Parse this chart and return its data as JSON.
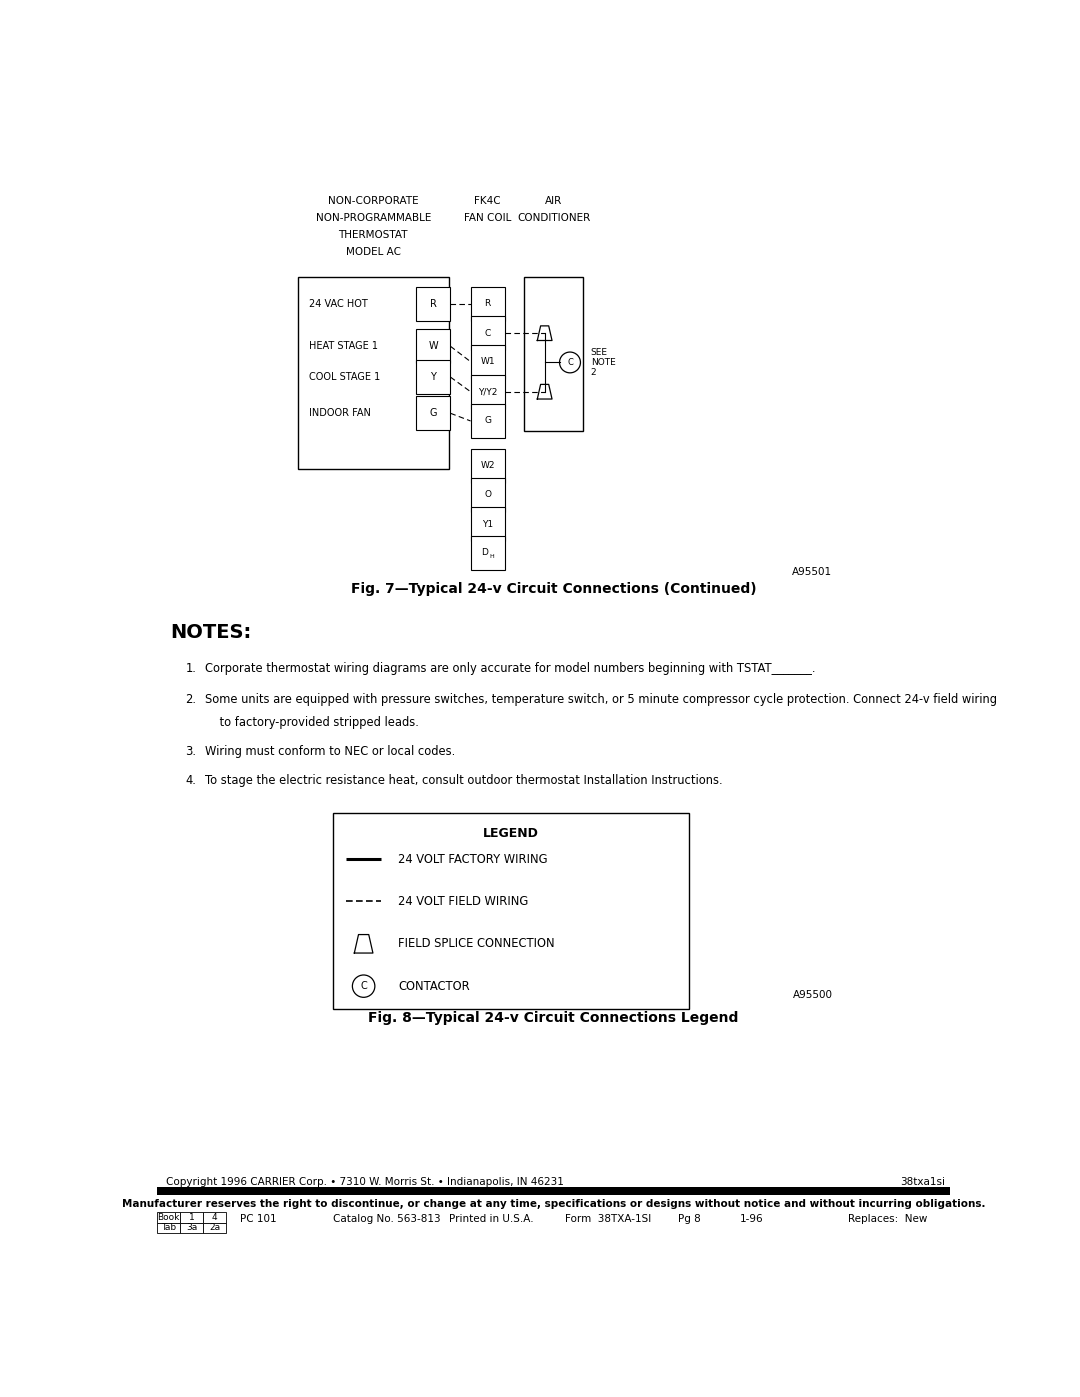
{
  "bg_color": "#ffffff",
  "page_width": 10.8,
  "page_height": 13.97,
  "fig_caption1": "Fig. 7—Typical 24-v Circuit Connections (Continued)",
  "fig_caption2": "Fig. 8—Typical 24-v Circuit Connections Legend",
  "ref_num1": "A95501",
  "ref_num2": "A95500",
  "thermostat_title_lines": [
    "NON-CORPORATE",
    "NON-PROGRAMMABLE",
    "THERMOSTAT",
    "MODEL AC"
  ],
  "fancoil_title_lines": [
    "FK4C",
    "FAN COIL"
  ],
  "aircond_title_lines": [
    "AIR",
    "CONDITIONER"
  ],
  "therm_labels": [
    "24 VAC HOT",
    "HEAT STAGE 1",
    "COOL STAGE 1",
    "INDOOR FAN"
  ],
  "therm_terms": [
    "R",
    "W",
    "Y",
    "G"
  ],
  "fc_terms": [
    "R",
    "C",
    "W1",
    "Y/Y2",
    "G",
    "W2",
    "O",
    "Y1",
    "DH"
  ],
  "notes_title": "NOTES:",
  "note1": "Corporate thermostat wiring diagrams are only accurate for model numbers beginning with TSTAT_______.",
  "note2a": "Some units are equipped with pressure switches, temperature switch, or 5 minute compressor cycle protection. Connect 24-v field wiring",
  "note2b": "    to factory-provided stripped leads.",
  "note3": "Wiring must conform to NEC or local codes.",
  "note4": "To stage the electric resistance heat, consult outdoor thermostat Installation Instructions.",
  "legend_title": "LEGEND",
  "leg_item1": "24 VOLT FACTORY WIRING",
  "leg_item2": "24 VOLT FIELD WIRING",
  "leg_item3": "FIELD SPLICE CONNECTION",
  "leg_item4": "CONTACTOR",
  "copyright": "Copyright 1996 CARRIER Corp. • 7310 W. Morris St. • Indianapolis, IN 46231",
  "form_ref": "38txa1si",
  "disclaimer": "Manufacturer reserves the right to discontinue, or change at any time, specifications or designs without notice and without incurring obligations.",
  "footer_details": [
    "PC 101",
    "Catalog No. 563-813",
    "Printed in U.S.A.",
    "Form  38TXA-1SI",
    "Pg 8",
    "1-96",
    "Replaces:  New"
  ],
  "footer_detail_x": [
    1.35,
    2.55,
    4.05,
    5.55,
    7.0,
    7.8,
    9.2
  ],
  "book_grid": [
    [
      "Book",
      "1",
      "4"
    ],
    [
      "Tab",
      "3a",
      "2a"
    ]
  ]
}
